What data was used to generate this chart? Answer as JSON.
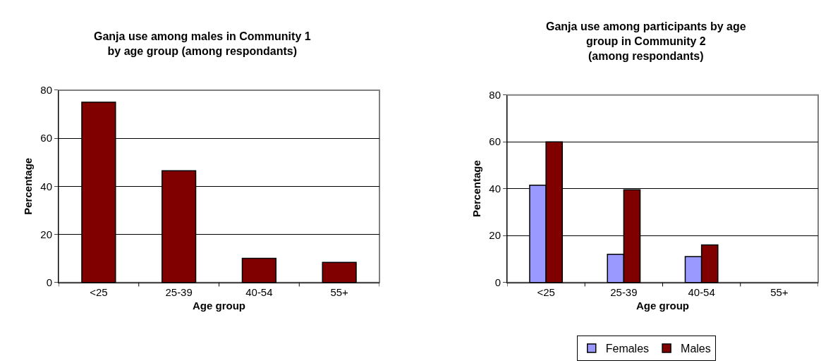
{
  "chart_data": [
    {
      "type": "bar",
      "title": "Ganja use among males in Community 1\nby age group (among respondants)",
      "xlabel": "Age group",
      "ylabel": "Percentage",
      "categories": [
        "<25",
        "25-39",
        "40-54",
        "55+"
      ],
      "series": [
        {
          "color": "#800000",
          "values": [
            75,
            46.5,
            10,
            8.3
          ]
        }
      ],
      "ylim": [
        0,
        80
      ],
      "yticks": [
        0,
        20,
        40,
        60,
        80
      ],
      "grid": "y",
      "legend": false
    },
    {
      "type": "bar",
      "title": "Ganja use among participants by age\ngroup in Community 2\n(among respondants)",
      "xlabel": "Age group",
      "ylabel": "Percentage",
      "categories": [
        "<25",
        "25-39",
        "40-54",
        "55+"
      ],
      "series": [
        {
          "name": "Females",
          "color": "#9999ff",
          "values": [
            41.5,
            12,
            11,
            0
          ]
        },
        {
          "name": "Males",
          "color": "#800000",
          "values": [
            60,
            39.5,
            16,
            0
          ]
        }
      ],
      "ylim": [
        0,
        80
      ],
      "yticks": [
        0,
        20,
        40,
        60,
        80
      ],
      "grid": "y",
      "legend": "bottom"
    }
  ]
}
